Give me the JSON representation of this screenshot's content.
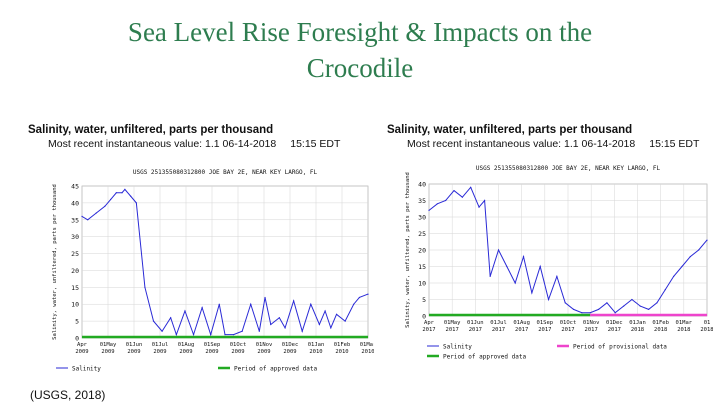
{
  "slide": {
    "title_line1": "Sea Level Rise Foresight & Impacts on the",
    "title_line2": "Crocodile",
    "citation": "(USGS, 2018)"
  },
  "charts": {
    "header": "Salinity, water, unfiltered, parts per thousand",
    "recent_value": "Most recent instantaneous value: 1.1 06-14-2018",
    "recent_time": "15:15 EDT"
  },
  "colors": {
    "series": "#2a2ad6",
    "approved": "#22aa22",
    "provisional": "#ee44cc",
    "title": "#2e7d4f"
  },
  "chart_data": [
    {
      "type": "line",
      "title": "USGS 251355080312800 JOE BAY 2E, NEAR KEY LARGO, FL",
      "ylabel": "Salinity, water, unfiltered, parts per thousand",
      "ylim": [
        0,
        45
      ],
      "yticks": [
        "0",
        "5",
        "10",
        "15",
        "20",
        "25",
        "30",
        "35",
        "40",
        "45"
      ],
      "xticks": [
        {
          "m": "Apr",
          "y": "2009"
        },
        {
          "m": "01May",
          "y": "2009"
        },
        {
          "m": "01Jun",
          "y": "2009"
        },
        {
          "m": "01Jul",
          "y": "2009"
        },
        {
          "m": "01Aug",
          "y": "2009"
        },
        {
          "m": "01Sep",
          "y": "2009"
        },
        {
          "m": "01Oct",
          "y": "2009"
        },
        {
          "m": "01Nov",
          "y": "2009"
        },
        {
          "m": "01Dec",
          "y": "2009"
        },
        {
          "m": "01Jan",
          "y": "2010"
        },
        {
          "m": "01Feb",
          "y": "2010"
        },
        {
          "m": "01Mar",
          "y": "2010"
        }
      ],
      "series": [
        {
          "name": "Salinity",
          "x": [
            0,
            0.02,
            0.05,
            0.08,
            0.1,
            0.12,
            0.14,
            0.15,
            0.17,
            0.19,
            0.22,
            0.25,
            0.28,
            0.31,
            0.33,
            0.36,
            0.39,
            0.42,
            0.45,
            0.48,
            0.5,
            0.53,
            0.56,
            0.59,
            0.62,
            0.64,
            0.66,
            0.69,
            0.71,
            0.74,
            0.77,
            0.8,
            0.83,
            0.85,
            0.87,
            0.89,
            0.92,
            0.95,
            0.97,
            1.0
          ],
          "values": [
            36,
            35,
            37,
            39,
            41,
            43,
            43,
            44,
            42,
            40,
            15,
            5,
            2,
            6,
            1,
            8,
            1,
            9,
            1,
            10,
            1,
            1,
            2,
            10,
            2,
            12,
            4,
            6,
            3,
            11,
            2,
            10,
            4,
            8,
            3,
            7,
            5,
            10,
            12,
            13
          ]
        }
      ],
      "legend": [
        {
          "label": "Salinity"
        },
        {
          "label": "Period of approved data"
        }
      ]
    },
    {
      "type": "line",
      "title": "USGS 251355080312800 JOE BAY 2E, NEAR KEY LARGO, FL",
      "ylabel": "Salinity, water, unfiltered, parts per thousand",
      "ylim": [
        0,
        40
      ],
      "yticks": [
        "0",
        "5",
        "10",
        "15",
        "20",
        "25",
        "30",
        "35",
        "40"
      ],
      "xticks": [
        {
          "m": "Apr",
          "y": "2017"
        },
        {
          "m": "01May",
          "y": "2017"
        },
        {
          "m": "01Jun",
          "y": "2017"
        },
        {
          "m": "01Jul",
          "y": "2017"
        },
        {
          "m": "01Aug",
          "y": "2017"
        },
        {
          "m": "01Sep",
          "y": "2017"
        },
        {
          "m": "01Oct",
          "y": "2017"
        },
        {
          "m": "01Nov",
          "y": "2017"
        },
        {
          "m": "01Dec",
          "y": "2017"
        },
        {
          "m": "01Jan",
          "y": "2018"
        },
        {
          "m": "01Feb",
          "y": "2018"
        },
        {
          "m": "01Mar",
          "y": "2018"
        },
        {
          "m": "01",
          "y": "2018"
        }
      ],
      "series": [
        {
          "name": "Salinity",
          "x": [
            0,
            0.03,
            0.06,
            0.09,
            0.12,
            0.15,
            0.18,
            0.2,
            0.22,
            0.25,
            0.28,
            0.31,
            0.34,
            0.37,
            0.4,
            0.43,
            0.46,
            0.49,
            0.52,
            0.55,
            0.58,
            0.61,
            0.64,
            0.67,
            0.7,
            0.73,
            0.76,
            0.79,
            0.82,
            0.85,
            0.88,
            0.91,
            0.94,
            0.97,
            1.0
          ],
          "values": [
            32,
            34,
            35,
            38,
            36,
            39,
            33,
            35,
            12,
            20,
            15,
            10,
            18,
            7,
            15,
            5,
            12,
            4,
            2,
            1,
            1,
            2,
            4,
            1,
            3,
            5,
            3,
            2,
            4,
            8,
            12,
            15,
            18,
            20,
            23
          ]
        }
      ],
      "legend": [
        {
          "label": "Salinity"
        },
        {
          "label": "Period of approved data"
        },
        {
          "label": "Period of provisional data"
        }
      ]
    }
  ]
}
